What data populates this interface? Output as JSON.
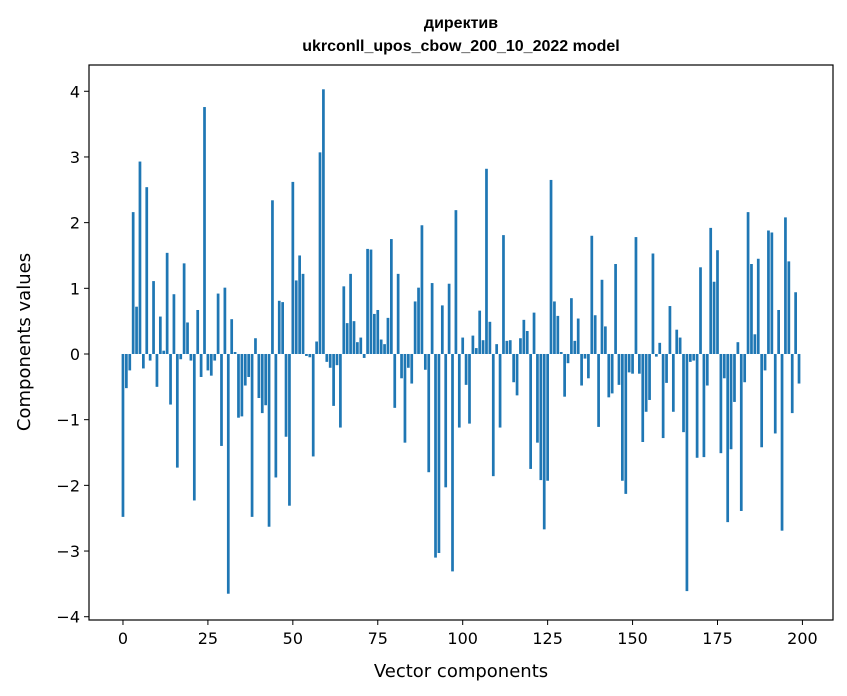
{
  "chart_data": {
    "type": "bar",
    "title_line1": "директив",
    "title_line2": "ukrconll_upos_cbow_200_10_2022 model",
    "xlabel": "Vector components",
    "ylabel": "Components values",
    "xlim": [
      -10,
      209
    ],
    "ylim": [
      -4.05,
      4.4
    ],
    "xticks": [
      0,
      25,
      50,
      75,
      100,
      125,
      150,
      175,
      200
    ],
    "xtick_labels": [
      "0",
      "25",
      "50",
      "75",
      "100",
      "125",
      "150",
      "175",
      "200"
    ],
    "yticks": [
      4,
      3,
      2,
      1,
      0,
      -1,
      -2,
      -3,
      -4
    ],
    "ytick_labels": [
      "4",
      "3",
      "2",
      "1",
      "0",
      "−1",
      "−2",
      "−3",
      "−4"
    ],
    "bar_color": "#1f77b4",
    "x": [
      0,
      1,
      2,
      3,
      4,
      5,
      6,
      7,
      8,
      9,
      10,
      11,
      12,
      13,
      14,
      15,
      16,
      17,
      18,
      19,
      20,
      21,
      22,
      23,
      24,
      25,
      26,
      27,
      28,
      29,
      30,
      31,
      32,
      33,
      34,
      35,
      36,
      37,
      38,
      39,
      40,
      41,
      42,
      43,
      44,
      45,
      46,
      47,
      48,
      49,
      50,
      51,
      52,
      53,
      54,
      55,
      56,
      57,
      58,
      59,
      60,
      61,
      62,
      63,
      64,
      65,
      66,
      67,
      68,
      69,
      70,
      71,
      72,
      73,
      74,
      75,
      76,
      77,
      78,
      79,
      80,
      81,
      82,
      83,
      84,
      85,
      86,
      87,
      88,
      89,
      90,
      91,
      92,
      93,
      94,
      95,
      96,
      97,
      98,
      99,
      100,
      101,
      102,
      103,
      104,
      105,
      106,
      107,
      108,
      109,
      110,
      111,
      112,
      113,
      114,
      115,
      116,
      117,
      118,
      119,
      120,
      121,
      122,
      123,
      124,
      125,
      126,
      127,
      128,
      129,
      130,
      131,
      132,
      133,
      134,
      135,
      136,
      137,
      138,
      139,
      140,
      141,
      142,
      143,
      144,
      145,
      146,
      147,
      148,
      149,
      150,
      151,
      152,
      153,
      154,
      155,
      156,
      157,
      158,
      159,
      160,
      161,
      162,
      163,
      164,
      165,
      166,
      167,
      168,
      169,
      170,
      171,
      172,
      173,
      174,
      175,
      176,
      177,
      178,
      179,
      180,
      181,
      182,
      183,
      184,
      185,
      186,
      187,
      188,
      189,
      190,
      191,
      192,
      193,
      194,
      195,
      196,
      197,
      198,
      199
    ],
    "values": [
      -2.48,
      -0.52,
      -0.25,
      2.16,
      0.72,
      2.93,
      -0.22,
      2.54,
      -0.1,
      1.11,
      -0.5,
      0.57,
      0.05,
      1.54,
      -0.77,
      0.91,
      -1.73,
      -0.08,
      1.38,
      0.48,
      -0.1,
      -2.23,
      0.67,
      -0.35,
      3.76,
      -0.25,
      -0.33,
      -0.1,
      0.92,
      -1.4,
      1.01,
      -3.65,
      0.53,
      0.03,
      -0.97,
      -0.95,
      -0.48,
      -0.35,
      -2.48,
      0.24,
      -0.67,
      -0.9,
      -0.78,
      -2.63,
      2.34,
      -1.88,
      0.81,
      0.79,
      -1.26,
      -2.31,
      2.62,
      1.12,
      1.5,
      1.22,
      -0.03,
      -0.05,
      -1.56,
      0.19,
      3.07,
      4.03,
      -0.12,
      -0.21,
      -0.79,
      -0.17,
      -1.12,
      1.03,
      0.47,
      1.22,
      0.5,
      0.18,
      0.25,
      -0.06,
      1.6,
      1.59,
      0.61,
      0.67,
      0.22,
      0.15,
      0.55,
      1.75,
      -0.82,
      1.22,
      -0.37,
      -1.35,
      -0.21,
      -0.45,
      0.8,
      1.01,
      1.96,
      -0.24,
      -1.8,
      1.08,
      -3.1,
      -3.03,
      0.74,
      -2.03,
      1.07,
      -3.31,
      2.19,
      -1.12,
      0.25,
      -0.47,
      -1.06,
      0.28,
      0.09,
      0.66,
      0.21,
      2.82,
      0.49,
      -1.86,
      0.15,
      -1.12,
      1.81,
      0.2,
      0.21,
      -0.43,
      -0.63,
      0.24,
      0.52,
      0.35,
      -1.75,
      0.63,
      -1.35,
      -1.92,
      -2.67,
      -1.93,
      2.65,
      0.8,
      0.58,
      0.03,
      -0.65,
      -0.14,
      0.85,
      0.2,
      0.54,
      -0.48,
      -0.07,
      -0.37,
      1.8,
      0.59,
      -1.11,
      1.13,
      0.42,
      -0.66,
      -0.6,
      1.37,
      -0.47,
      -1.93,
      -2.13,
      -0.28,
      -0.3,
      1.78,
      -0.3,
      -1.34,
      -0.88,
      -0.7,
      1.53,
      -0.04,
      0.17,
      -1.28,
      -0.44,
      0.73,
      -0.88,
      0.37,
      0.25,
      -1.19,
      -3.61,
      -0.12,
      -0.1,
      -1.58,
      1.32,
      -1.57,
      -0.48,
      1.92,
      1.1,
      1.58,
      -1.51,
      -0.37,
      -2.56,
      -1.45,
      -0.73,
      0.18,
      -2.39,
      -0.43,
      2.16,
      1.37,
      0.3,
      1.45,
      -1.42,
      -0.25,
      1.88,
      1.85,
      -1.21,
      0.67,
      -2.69,
      2.08,
      1.41,
      -0.9,
      0.94,
      -0.45
    ]
  }
}
